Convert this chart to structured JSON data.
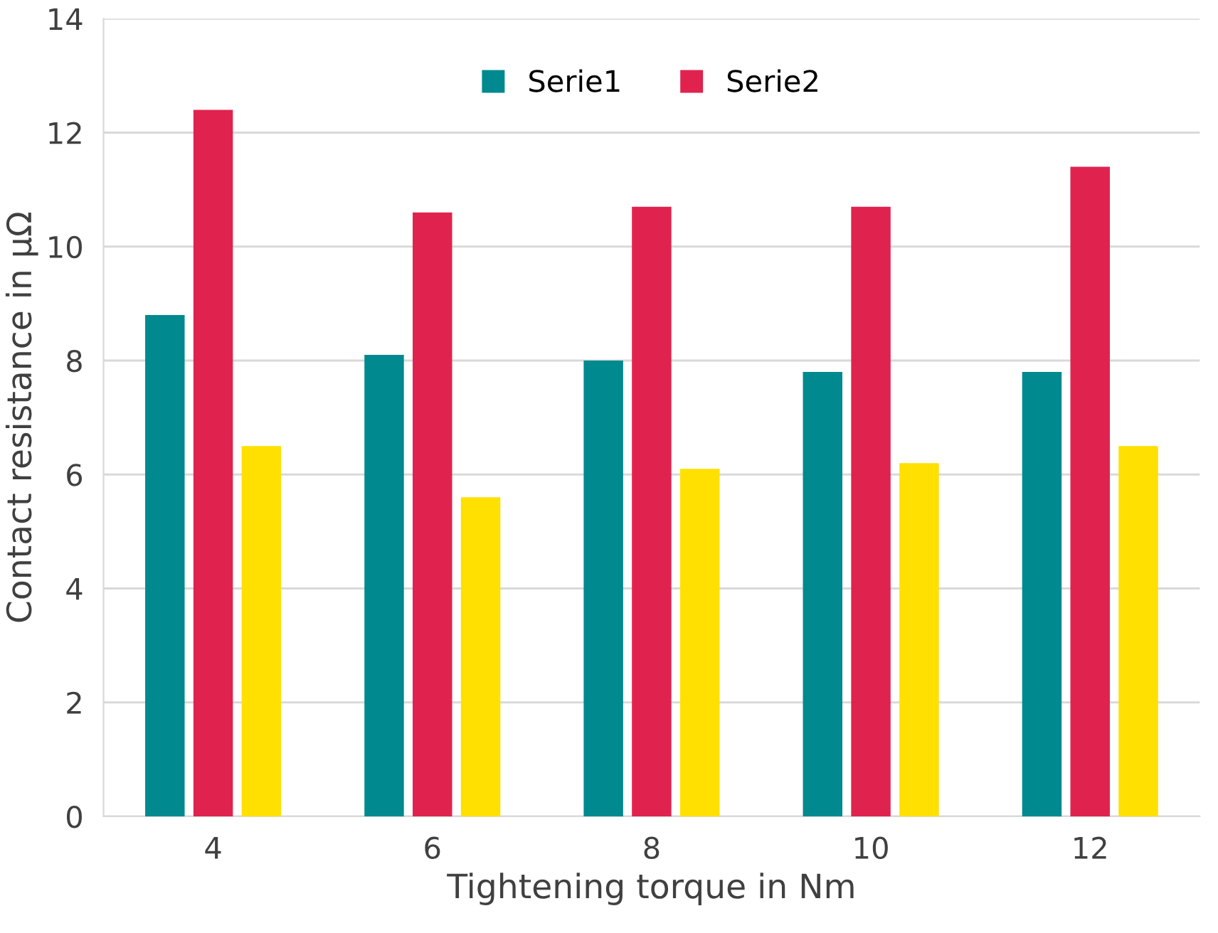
{
  "chart_data": {
    "type": "bar",
    "xlabel": "Tightening torque in Nm",
    "ylabel": "Contact resistance in µΩ",
    "categories": [
      "4",
      "6",
      "8",
      "10",
      "12"
    ],
    "series": [
      {
        "name": "Serie1",
        "color": "#00898e",
        "values": [
          8.8,
          8.1,
          8.0,
          7.8,
          7.8
        ]
      },
      {
        "name": "Serie2",
        "color": "#e0234e",
        "values": [
          12.4,
          10.6,
          10.7,
          10.7,
          11.4
        ]
      },
      {
        "color": "#ffe000",
        "values": [
          6.5,
          5.6,
          6.1,
          6.2,
          6.5
        ]
      }
    ],
    "ylim": [
      0,
      14
    ],
    "yticks": [
      0,
      2,
      4,
      6,
      8,
      10,
      12,
      14
    ],
    "grid": "y",
    "legend": "top"
  }
}
